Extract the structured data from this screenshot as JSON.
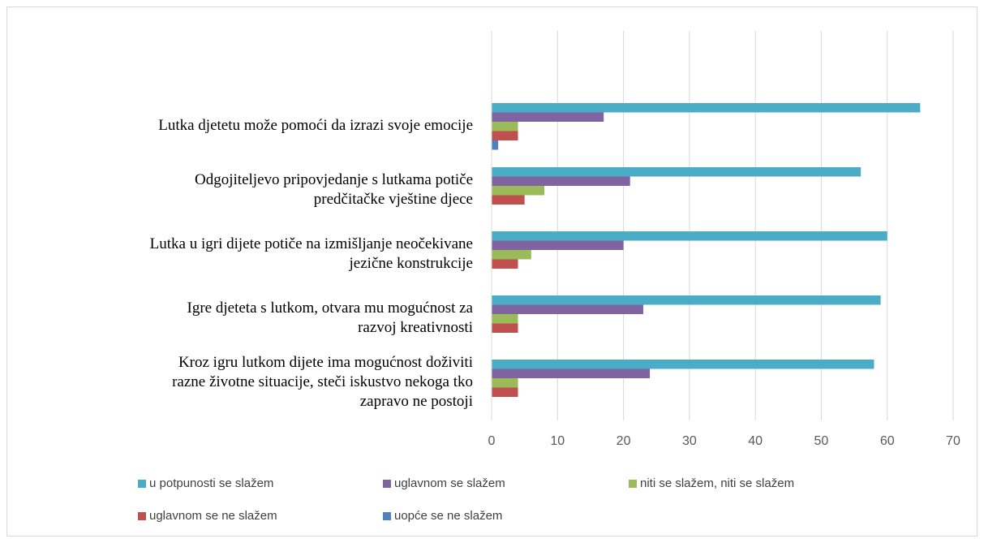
{
  "chart_data": {
    "type": "bar",
    "orientation": "horizontal",
    "categories": [
      [
        "Lutka djetetu može pomoći da izrazi svoje emocije"
      ],
      [
        "Odgojiteljevo pripovjedanje s lutkama potiče",
        "predčitačke vještine djece"
      ],
      [
        "Lutka u igri dijete potiče na izmišljanje neočekivane",
        "jezične konstrukcije"
      ],
      [
        "Igre djeteta s lutkom, otvara mu mogućnost za",
        "razvoj kreativnosti"
      ],
      [
        "Kroz igru lutkom dijete ima mogućnost doživiti",
        "razne životne situacije, steči iskustvo nekoga tko",
        "zapravo ne postoji"
      ]
    ],
    "series": [
      {
        "name": "u potpunosti se slažem",
        "color": "#4bacc6",
        "values": [
          65,
          56,
          60,
          59,
          58
        ]
      },
      {
        "name": "uglavnom se slažem",
        "color": "#8064a2",
        "values": [
          17,
          21,
          20,
          23,
          24
        ]
      },
      {
        "name": "niti se slažem, niti se slažem",
        "color": "#9bbb59",
        "values": [
          4,
          8,
          6,
          4,
          4
        ]
      },
      {
        "name": "uglavnom se ne slažem",
        "color": "#c0504d",
        "values": [
          4,
          5,
          4,
          4,
          4
        ]
      },
      {
        "name": "uopće se ne slažem",
        "color": "#4f81bd",
        "values": [
          1,
          0,
          0,
          0,
          0
        ]
      }
    ],
    "xlim": [
      0,
      70
    ],
    "xticks": [
      0,
      10,
      20,
      30,
      40,
      50,
      60,
      70
    ],
    "grid": true,
    "legend": "bottom"
  }
}
